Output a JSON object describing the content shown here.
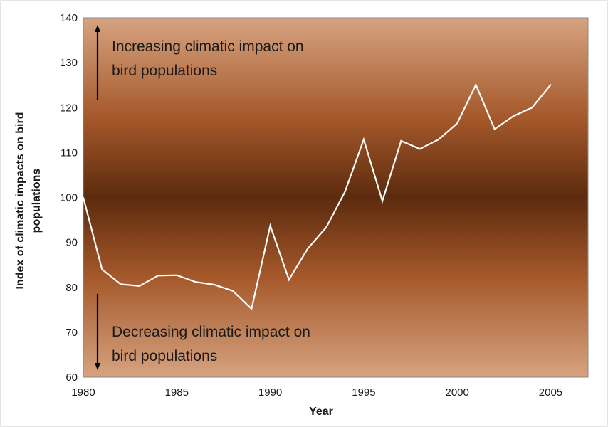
{
  "chart_data": {
    "type": "line",
    "title": "",
    "xlabel": "Year",
    "ylabel": "Index of climatic impacts on bird populations",
    "xlim": [
      1980,
      2007
    ],
    "ylim": [
      60,
      140
    ],
    "xticks": [
      1980,
      1985,
      1990,
      1995,
      2000,
      2005
    ],
    "yticks": [
      60,
      70,
      80,
      90,
      100,
      110,
      120,
      130,
      140
    ],
    "grid": false,
    "series": [
      {
        "x": [
          1980,
          1981,
          1982,
          1983,
          1984,
          1985,
          1986,
          1987,
          1988,
          1989,
          1990,
          1991,
          1992,
          1993,
          1994,
          1995,
          1996,
          1997,
          1998,
          1999,
          2000,
          2001,
          2002,
          2003,
          2004,
          2005
        ],
        "y": [
          100,
          84,
          80.7,
          80.3,
          82.6,
          82.7,
          81.2,
          80.6,
          79.2,
          75.2,
          93.7,
          81.7,
          88.6,
          93.4,
          101.3,
          112.9,
          99.2,
          112.6,
          110.8,
          112.9,
          116.5,
          125.1,
          115.2,
          118.1,
          120,
          125.1
        ]
      }
    ],
    "annotations": [
      {
        "text": "Increasing climatic impact on bird populations",
        "lines": [
          "Increasing climatic impact on",
          "bird populations"
        ],
        "arrow": "up"
      },
      {
        "text": "Decreasing climatic impact on bird populations",
        "lines": [
          "Decreasing climatic impact on",
          "bird populations"
        ],
        "arrow": "down"
      }
    ],
    "colors": {
      "line": "#ffffff",
      "background_center": "#5c2b0e",
      "background_mid": "#a5582a",
      "background_edge": "#d6a380",
      "text": "#1a1a1a"
    }
  }
}
